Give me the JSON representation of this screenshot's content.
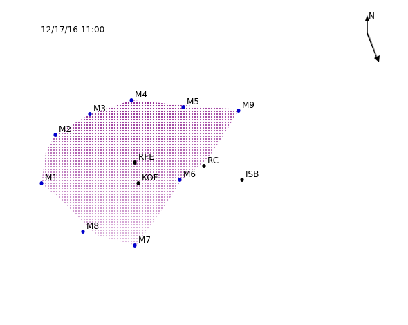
{
  "timestamp": "12/17/16 11:00",
  "north_label": "N",
  "colors": {
    "grid_dark": "#8b1a8b",
    "grid_light": "#e6c6e6",
    "station_blue": "#0000cc",
    "station_black": "#000000"
  },
  "stations": [
    {
      "id": "M1",
      "label": "M1",
      "type": "blue"
    },
    {
      "id": "M2",
      "label": "M2",
      "type": "blue"
    },
    {
      "id": "M3",
      "label": "M3",
      "type": "blue"
    },
    {
      "id": "M4",
      "label": "M4",
      "type": "blue"
    },
    {
      "id": "M5",
      "label": "M5",
      "type": "blue"
    },
    {
      "id": "M9",
      "label": "M9",
      "type": "blue"
    },
    {
      "id": "M6",
      "label": "M6",
      "type": "blue"
    },
    {
      "id": "M7",
      "label": "M7",
      "type": "blue"
    },
    {
      "id": "M8",
      "label": "M8",
      "type": "blue"
    },
    {
      "id": "RFE",
      "label": "RFE",
      "type": "black"
    },
    {
      "id": "KOF",
      "label": "KOF",
      "type": "black"
    },
    {
      "id": "RC",
      "label": "RC",
      "type": "black"
    },
    {
      "id": "ISB",
      "label": "ISB",
      "type": "black"
    }
  ]
}
